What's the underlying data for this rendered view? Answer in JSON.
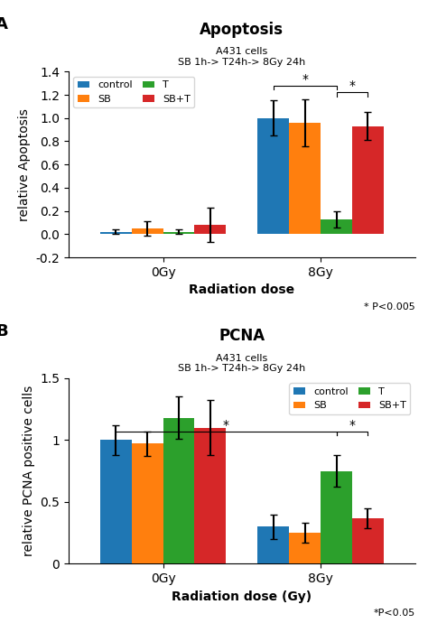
{
  "chart_data": [
    {
      "type": "bar",
      "panel_label": "A",
      "title": "Apoptosis",
      "subtitle": "A431 cells\nSB 1h-> T24h-> 8Gy 24h",
      "xlabel": "Radiation dose",
      "ylabel": "relative Apoptosis",
      "categories": [
        "0Gy",
        "8Gy"
      ],
      "series": [
        {
          "name": "control",
          "values": [
            0.02,
            1.0
          ],
          "errors": [
            0.02,
            0.15
          ]
        },
        {
          "name": "SB",
          "values": [
            0.05,
            0.96
          ],
          "errors": [
            0.06,
            0.2
          ]
        },
        {
          "name": "T",
          "values": [
            0.02,
            0.13
          ],
          "errors": [
            0.02,
            0.07
          ]
        },
        {
          "name": "SB+T",
          "values": [
            0.08,
            0.93
          ],
          "errors": [
            0.15,
            0.12
          ]
        }
      ],
      "ylim": [
        -0.2,
        1.4
      ],
      "yticks": [
        -0.2,
        {
          "value": 0.0,
          "label": "0.0"
        },
        0.2,
        0.4,
        0.6,
        0.8,
        {
          "value": 1.0,
          "label": "1.0"
        },
        1.2,
        1.4
      ],
      "legend": "upper left",
      "brackets": [
        {
          "text": "*",
          "y": 1.28,
          "from": [
            "8Gy",
            "control"
          ],
          "to": [
            "8Gy",
            "T"
          ]
        },
        {
          "text": "*",
          "y": 1.22,
          "from": [
            "8Gy",
            "T"
          ],
          "to": [
            "8Gy",
            "SB+T"
          ]
        }
      ],
      "annotations": [
        "* P<0.005"
      ]
    },
    {
      "type": "bar",
      "panel_label": "B",
      "title": "PCNA",
      "subtitle": "A431 cells\nSB 1h-> T24h-> 8Gy 24h",
      "xlabel": "Radiation dose (Gy)",
      "ylabel": "relative PCNA positive cells",
      "categories": [
        "0Gy",
        "8Gy"
      ],
      "series": [
        {
          "name": "control",
          "values": [
            1.0,
            0.3
          ],
          "errors": [
            0.12,
            0.1
          ]
        },
        {
          "name": "SB",
          "values": [
            0.97,
            0.25
          ],
          "errors": [
            0.1,
            0.08
          ]
        },
        {
          "name": "T",
          "values": [
            1.18,
            0.75
          ],
          "errors": [
            0.17,
            0.13
          ]
        },
        {
          "name": "SB+T",
          "values": [
            1.1,
            0.37
          ],
          "errors": [
            0.22,
            0.08
          ]
        }
      ],
      "ylim": [
        0.0,
        1.5
      ],
      "yticks": [
        0,
        0.5,
        1,
        1.5
      ],
      "legend": "upper right",
      "brackets": [
        {
          "text": "*",
          "y": 1.07,
          "from": [
            "0Gy",
            "control"
          ],
          "to": [
            "8Gy",
            "T"
          ]
        },
        {
          "text": "*",
          "y": 1.07,
          "from": [
            "8Gy",
            "T"
          ],
          "to": [
            "8Gy",
            "SB+T"
          ]
        }
      ],
      "annotations": [
        "*P<0.05"
      ]
    }
  ]
}
